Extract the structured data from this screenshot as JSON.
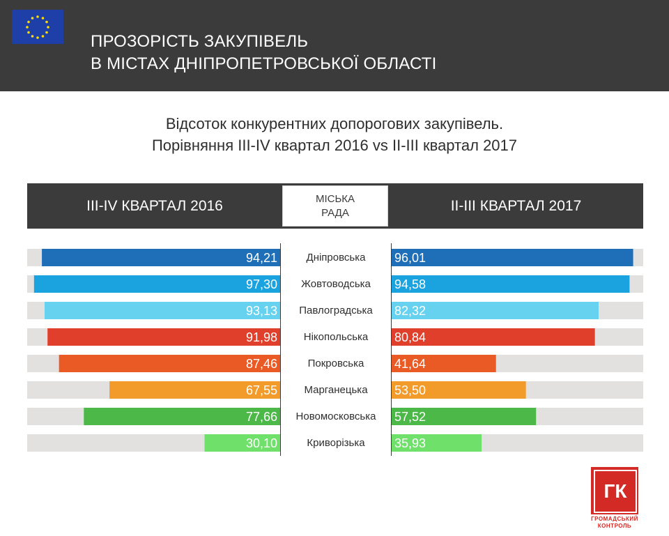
{
  "header": {
    "title_line1": "ПРОЗОРІСТЬ ЗАКУПІВЕЛЬ",
    "title_line2": "В МІСТАХ ДНІПРОПЕТРОВСЬКОЇ ОБЛАСТІ"
  },
  "subtitle_line1": "Відсоток конкурентних допорогових закупівель.",
  "subtitle_line2": "Порівняння III-IV квартал 2016 vs II-III квартал 2017",
  "band": {
    "left": "III-IV КВАРТАЛ 2016",
    "center_line1": "МІСЬКА",
    "center_line2": "РАДА",
    "right": "II-III КВАРТАЛ 2017"
  },
  "logo": {
    "text": "ГК",
    "sub_line1": "ГРОМАДСЬКИЙ",
    "sub_line2": "КОНТРОЛЬ"
  },
  "chart_data": {
    "type": "bar",
    "categories": [
      "Дніпровська",
      "Жовтоводська",
      "Павлоградська",
      "Нікопольська",
      "Покровська",
      "Марганецька",
      "Новомосковська",
      "Криворізька"
    ],
    "series": [
      {
        "name": "III-IV КВАРТАЛ 2016",
        "values": [
          94.21,
          97.3,
          93.13,
          91.98,
          87.46,
          67.55,
          77.66,
          30.1
        ],
        "labels": [
          "94,21",
          "97,30",
          "93,13",
          "91,98",
          "87,46",
          "67,55",
          "77,66",
          "30,10"
        ]
      },
      {
        "name": "II-III КВАРТАЛ 2017",
        "values": [
          96.01,
          94.58,
          82.32,
          80.84,
          41.64,
          53.5,
          57.52,
          35.93
        ],
        "labels": [
          "96,01",
          "94,58",
          "82,32",
          "80,84",
          "41,64",
          "53,50",
          "57,52",
          "35,93"
        ]
      }
    ],
    "colors": [
      "#1f6fb8",
      "#1aa3df",
      "#66d2f0",
      "#e03f2b",
      "#ea5a24",
      "#f29b2b",
      "#4cb847",
      "#6fe06a"
    ],
    "track_color": "#e3e0e0",
    "ylim": [
      0,
      100
    ]
  }
}
